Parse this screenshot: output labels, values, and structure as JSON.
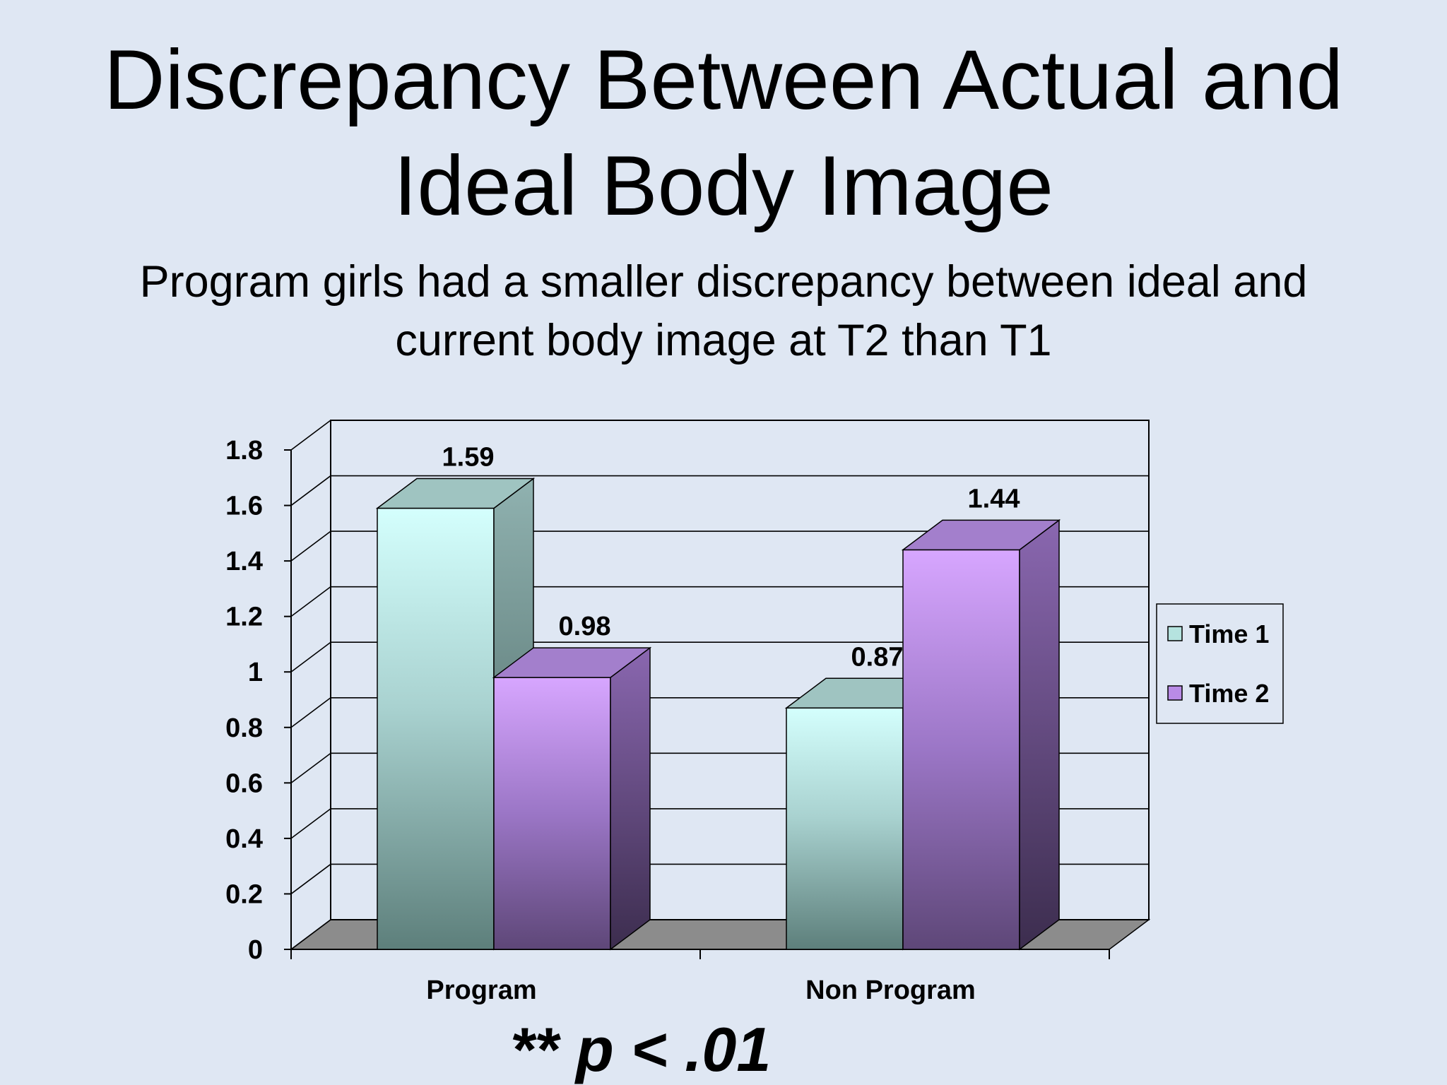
{
  "slide": {
    "title_line1": "Discrepancy Between Actual and",
    "title_line2": "Ideal Body Image",
    "subtitle_line1": "Program girls had a smaller discrepancy between ideal and",
    "subtitle_line2": "current body image at T2 than T1",
    "footnote": "** p < .01"
  },
  "chart_data": {
    "type": "bar",
    "style": "3d-clustered-column",
    "categories": [
      "Program",
      "Non Program"
    ],
    "series": [
      {
        "name": "Time 1",
        "values": [
          1.59,
          0.87
        ],
        "color": "#a9d9d6"
      },
      {
        "name": "Time 2",
        "values": [
          0.98,
          1.44
        ],
        "color": "#b98be6"
      }
    ],
    "data_labels": [
      [
        "1.59",
        "0.87"
      ],
      [
        "0.98",
        "1.44"
      ]
    ],
    "y_ticks": [
      "0",
      "0.2",
      "0.4",
      "0.6",
      "0.8",
      "1",
      "1.2",
      "1.4",
      "1.6",
      "1.8"
    ],
    "ylim": [
      0,
      1.8
    ],
    "grid": true,
    "legend_position": "right"
  }
}
